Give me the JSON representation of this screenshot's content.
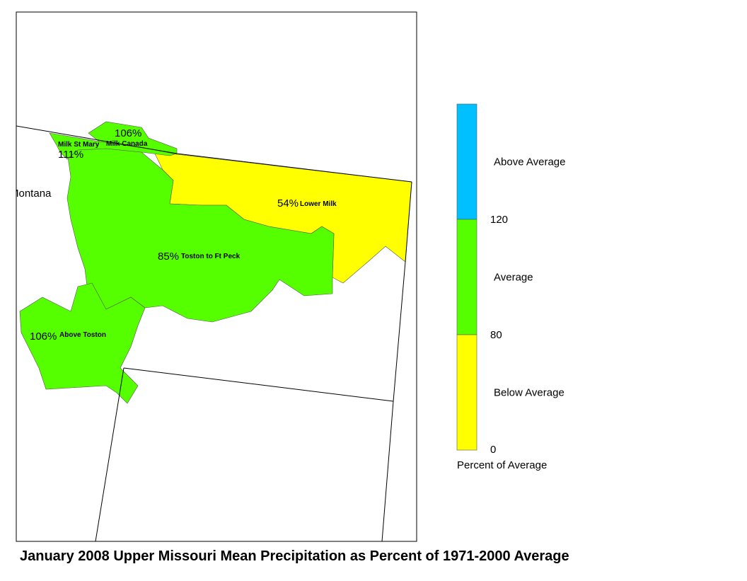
{
  "title": "January 2008 Upper Missouri Mean Precipitation as Percent of 1971-2000 Average",
  "state_label": "Montana",
  "regions": [
    {
      "name": "Lower Milk",
      "percent": "54%",
      "color": "#ffff00"
    },
    {
      "name": "Toston to Ft Peck",
      "percent": "85%",
      "color": "#55ff00"
    },
    {
      "name": "Above Toston",
      "percent": "106%",
      "color": "#55ff00"
    },
    {
      "name": "Milk St Mary",
      "percent": "111%",
      "color": "#55ff00"
    },
    {
      "name": "Milk Canada",
      "percent": "106%",
      "color": "#55ff00"
    }
  ],
  "legend": {
    "title": "Percent of Average",
    "classes": [
      {
        "label": "Above Average",
        "color": "#00c0ff"
      },
      {
        "label": "Average",
        "color": "#55ff00"
      },
      {
        "label": "Below Average",
        "color": "#ffff00"
      }
    ],
    "ticks": [
      "120",
      "80",
      "0"
    ]
  }
}
